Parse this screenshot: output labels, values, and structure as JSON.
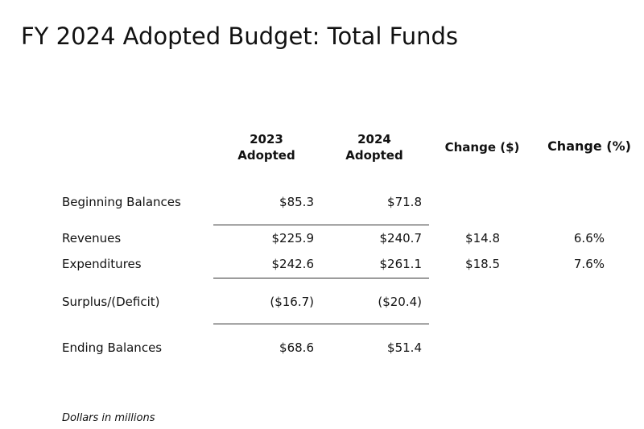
{
  "header": {
    "title": "FY 2024 Adopted Budget: Total Funds"
  },
  "table": {
    "columns": [
      {
        "lines": [
          "2023",
          "Adopted"
        ]
      },
      {
        "lines": [
          "2024",
          "Adopted"
        ]
      },
      {
        "lines": [
          "Change ($)"
        ]
      },
      {
        "lines": [
          "Change (%)"
        ]
      }
    ],
    "rows": [
      {
        "label": "Beginning Balances",
        "cells": [
          "$85.3",
          "$71.8"
        ]
      },
      {
        "label": "Revenues",
        "cells": [
          "$225.9",
          "$240.7",
          "$14.8",
          "6.6%"
        ]
      },
      {
        "label": "Expenditures",
        "cells": [
          "$242.6",
          "$261.1",
          "$18.5",
          "7.6%"
        ]
      },
      {
        "label": "Surplus/(Deficit)",
        "cells": [
          "($16.7)",
          "($20.4)"
        ]
      },
      {
        "label": "Ending Balances",
        "cells": [
          "$68.6",
          "$51.4"
        ]
      }
    ]
  },
  "footnote": "Dollars in millions"
}
